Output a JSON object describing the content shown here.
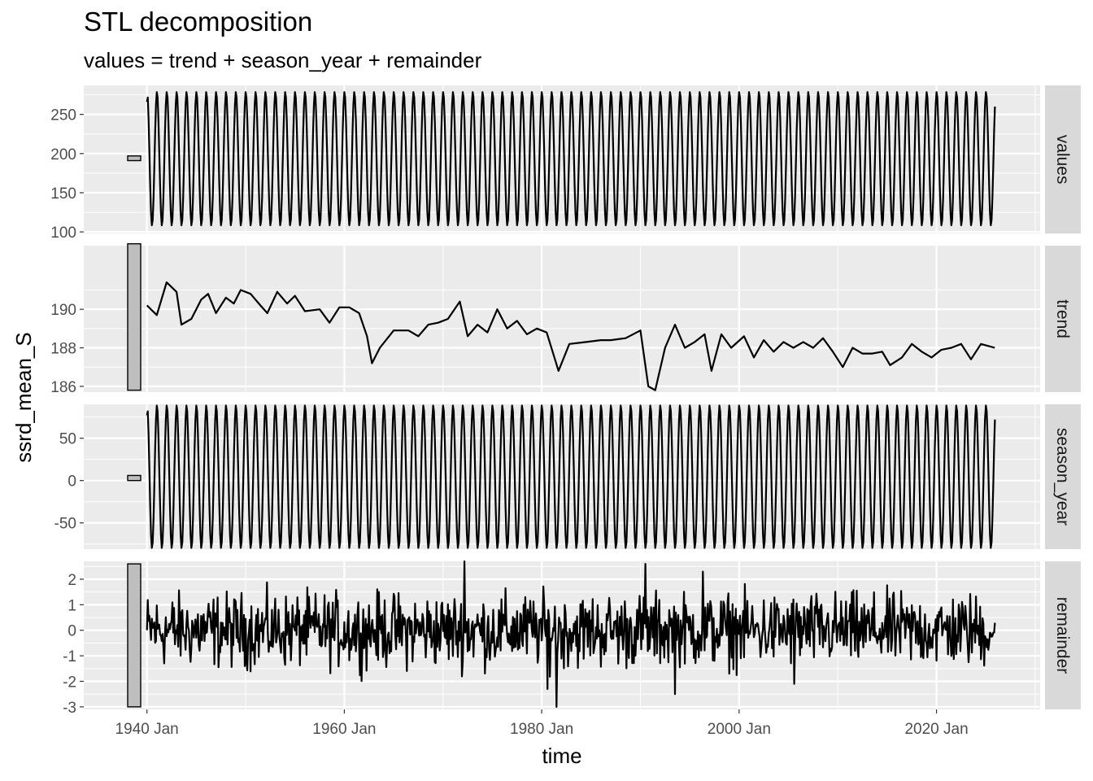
{
  "chart_data": {
    "type": "line",
    "title": "STL decomposition",
    "subtitle": "values = trend + season_year + remainder",
    "xlabel": "time",
    "ylabel": "ssrd_mean_S",
    "x_range": [
      "1940 Jan",
      "2025 Dec"
    ],
    "x_ticks": [
      "1940 Jan",
      "1960 Jan",
      "1980 Jan",
      "2000 Jan",
      "2020 Jan"
    ],
    "frequency": "monthly",
    "grid": true,
    "legend": "none",
    "colors": {
      "panel_bg": "#ebebeb",
      "grid": "#ffffff",
      "line": "#000000",
      "strip_bg": "#d9d9d9",
      "scale_bar": "#bebebe"
    },
    "panels": [
      {
        "name": "values",
        "ylim": [
          98,
          287
        ],
        "yticks": [
          100,
          150,
          200,
          250
        ],
        "scale_bar": [
          191,
          197
        ],
        "seasonal": {
          "min": 108,
          "max": 279,
          "first": 266,
          "last": 260
        }
      },
      {
        "name": "trend",
        "ylim": [
          185.7,
          193.3
        ],
        "yticks": [
          186,
          188,
          190
        ],
        "scale_bar": [
          185.8,
          193.4
        ],
        "points": [
          [
            1940.0,
            190.2
          ],
          [
            1941.0,
            189.7
          ],
          [
            1942.0,
            191.4
          ],
          [
            1943.0,
            190.9
          ],
          [
            1943.5,
            189.2
          ],
          [
            1944.5,
            189.5
          ],
          [
            1945.5,
            190.5
          ],
          [
            1946.2,
            190.8
          ],
          [
            1947.0,
            189.8
          ],
          [
            1948.0,
            190.6
          ],
          [
            1948.8,
            190.3
          ],
          [
            1949.5,
            191.0
          ],
          [
            1950.5,
            190.8
          ],
          [
            1951.5,
            190.2
          ],
          [
            1952.2,
            189.8
          ],
          [
            1953.2,
            190.9
          ],
          [
            1954.2,
            190.3
          ],
          [
            1955.0,
            190.7
          ],
          [
            1956.0,
            189.9
          ],
          [
            1957.5,
            190.0
          ],
          [
            1958.5,
            189.3
          ],
          [
            1959.5,
            190.1
          ],
          [
            1960.5,
            190.1
          ],
          [
            1961.5,
            189.8
          ],
          [
            1962.3,
            188.6
          ],
          [
            1962.8,
            187.2
          ],
          [
            1963.6,
            188.0
          ],
          [
            1965.0,
            188.9
          ],
          [
            1966.5,
            188.9
          ],
          [
            1967.5,
            188.6
          ],
          [
            1968.5,
            189.2
          ],
          [
            1969.5,
            189.3
          ],
          [
            1970.5,
            189.5
          ],
          [
            1971.7,
            190.4
          ],
          [
            1972.5,
            188.6
          ],
          [
            1973.5,
            189.2
          ],
          [
            1974.5,
            188.8
          ],
          [
            1975.5,
            190.0
          ],
          [
            1976.5,
            189.0
          ],
          [
            1977.5,
            189.4
          ],
          [
            1978.5,
            188.7
          ],
          [
            1979.5,
            189.0
          ],
          [
            1980.5,
            188.8
          ],
          [
            1981.7,
            186.8
          ],
          [
            1982.8,
            188.2
          ],
          [
            1984.5,
            188.3
          ],
          [
            1986.0,
            188.4
          ],
          [
            1987.0,
            188.4
          ],
          [
            1988.5,
            188.5
          ],
          [
            1990.0,
            188.9
          ],
          [
            1990.8,
            186.0
          ],
          [
            1991.5,
            185.8
          ],
          [
            1992.5,
            188.0
          ],
          [
            1993.5,
            189.2
          ],
          [
            1994.5,
            188.0
          ],
          [
            1995.5,
            188.3
          ],
          [
            1996.5,
            188.7
          ],
          [
            1997.2,
            186.8
          ],
          [
            1998.2,
            188.7
          ],
          [
            1999.2,
            188.0
          ],
          [
            2000.5,
            188.6
          ],
          [
            2001.5,
            187.5
          ],
          [
            2002.5,
            188.4
          ],
          [
            2003.5,
            187.8
          ],
          [
            2004.5,
            188.3
          ],
          [
            2005.5,
            188.0
          ],
          [
            2006.5,
            188.3
          ],
          [
            2007.5,
            188.0
          ],
          [
            2008.5,
            188.5
          ],
          [
            2009.5,
            187.8
          ],
          [
            2010.5,
            187.0
          ],
          [
            2011.5,
            188.0
          ],
          [
            2012.5,
            187.7
          ],
          [
            2013.5,
            187.7
          ],
          [
            2014.5,
            187.8
          ],
          [
            2015.3,
            187.1
          ],
          [
            2016.5,
            187.5
          ],
          [
            2017.5,
            188.2
          ],
          [
            2018.5,
            187.8
          ],
          [
            2019.5,
            187.5
          ],
          [
            2020.5,
            187.9
          ],
          [
            2021.5,
            188.0
          ],
          [
            2022.5,
            188.2
          ],
          [
            2023.5,
            187.4
          ],
          [
            2024.5,
            188.2
          ],
          [
            2025.9,
            188.0
          ]
        ]
      },
      {
        "name": "season_year",
        "ylim": [
          -81,
          90
        ],
        "yticks": [
          -50,
          0,
          50
        ],
        "scale_bar": [
          0,
          6
        ],
        "seasonal": {
          "min": -80,
          "max": 89,
          "first": 77,
          "last": 72
        }
      },
      {
        "name": "remainder",
        "ylim": [
          -3.1,
          2.7
        ],
        "yticks": [
          -3,
          -2,
          -1,
          0,
          1,
          2
        ],
        "yticklabels": [
          "-3",
          "-2",
          "-1",
          "0",
          "1",
          "2"
        ],
        "scale_bar": [
          -3.0,
          2.6
        ],
        "noise": {
          "amplitude": 1.0,
          "extremes": [
            [
              1972.2,
              2.7
            ],
            [
              1981.5,
              -3.0
            ],
            [
              1990.5,
              2.6
            ],
            [
              1993.5,
              -2.5
            ],
            [
              1980.6,
              -2.3
            ],
            [
              1996.3,
              2.3
            ],
            [
              2005.6,
              -2.1
            ]
          ]
        }
      }
    ]
  }
}
